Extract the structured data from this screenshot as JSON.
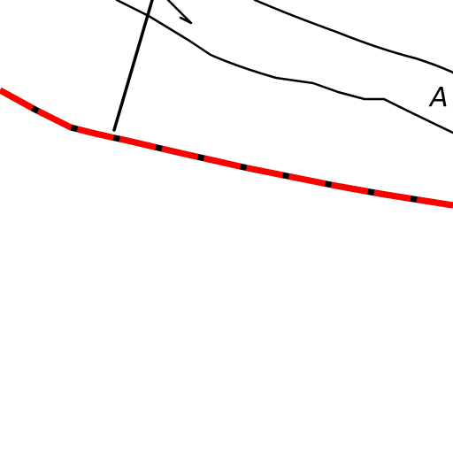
{
  "map": {
    "labels": {
      "road_label": "A"
    },
    "colors": {
      "background": "#ffffff",
      "line": "#000000",
      "boundary_dash": "#ff0000",
      "boundary_tick": "#000000"
    }
  }
}
